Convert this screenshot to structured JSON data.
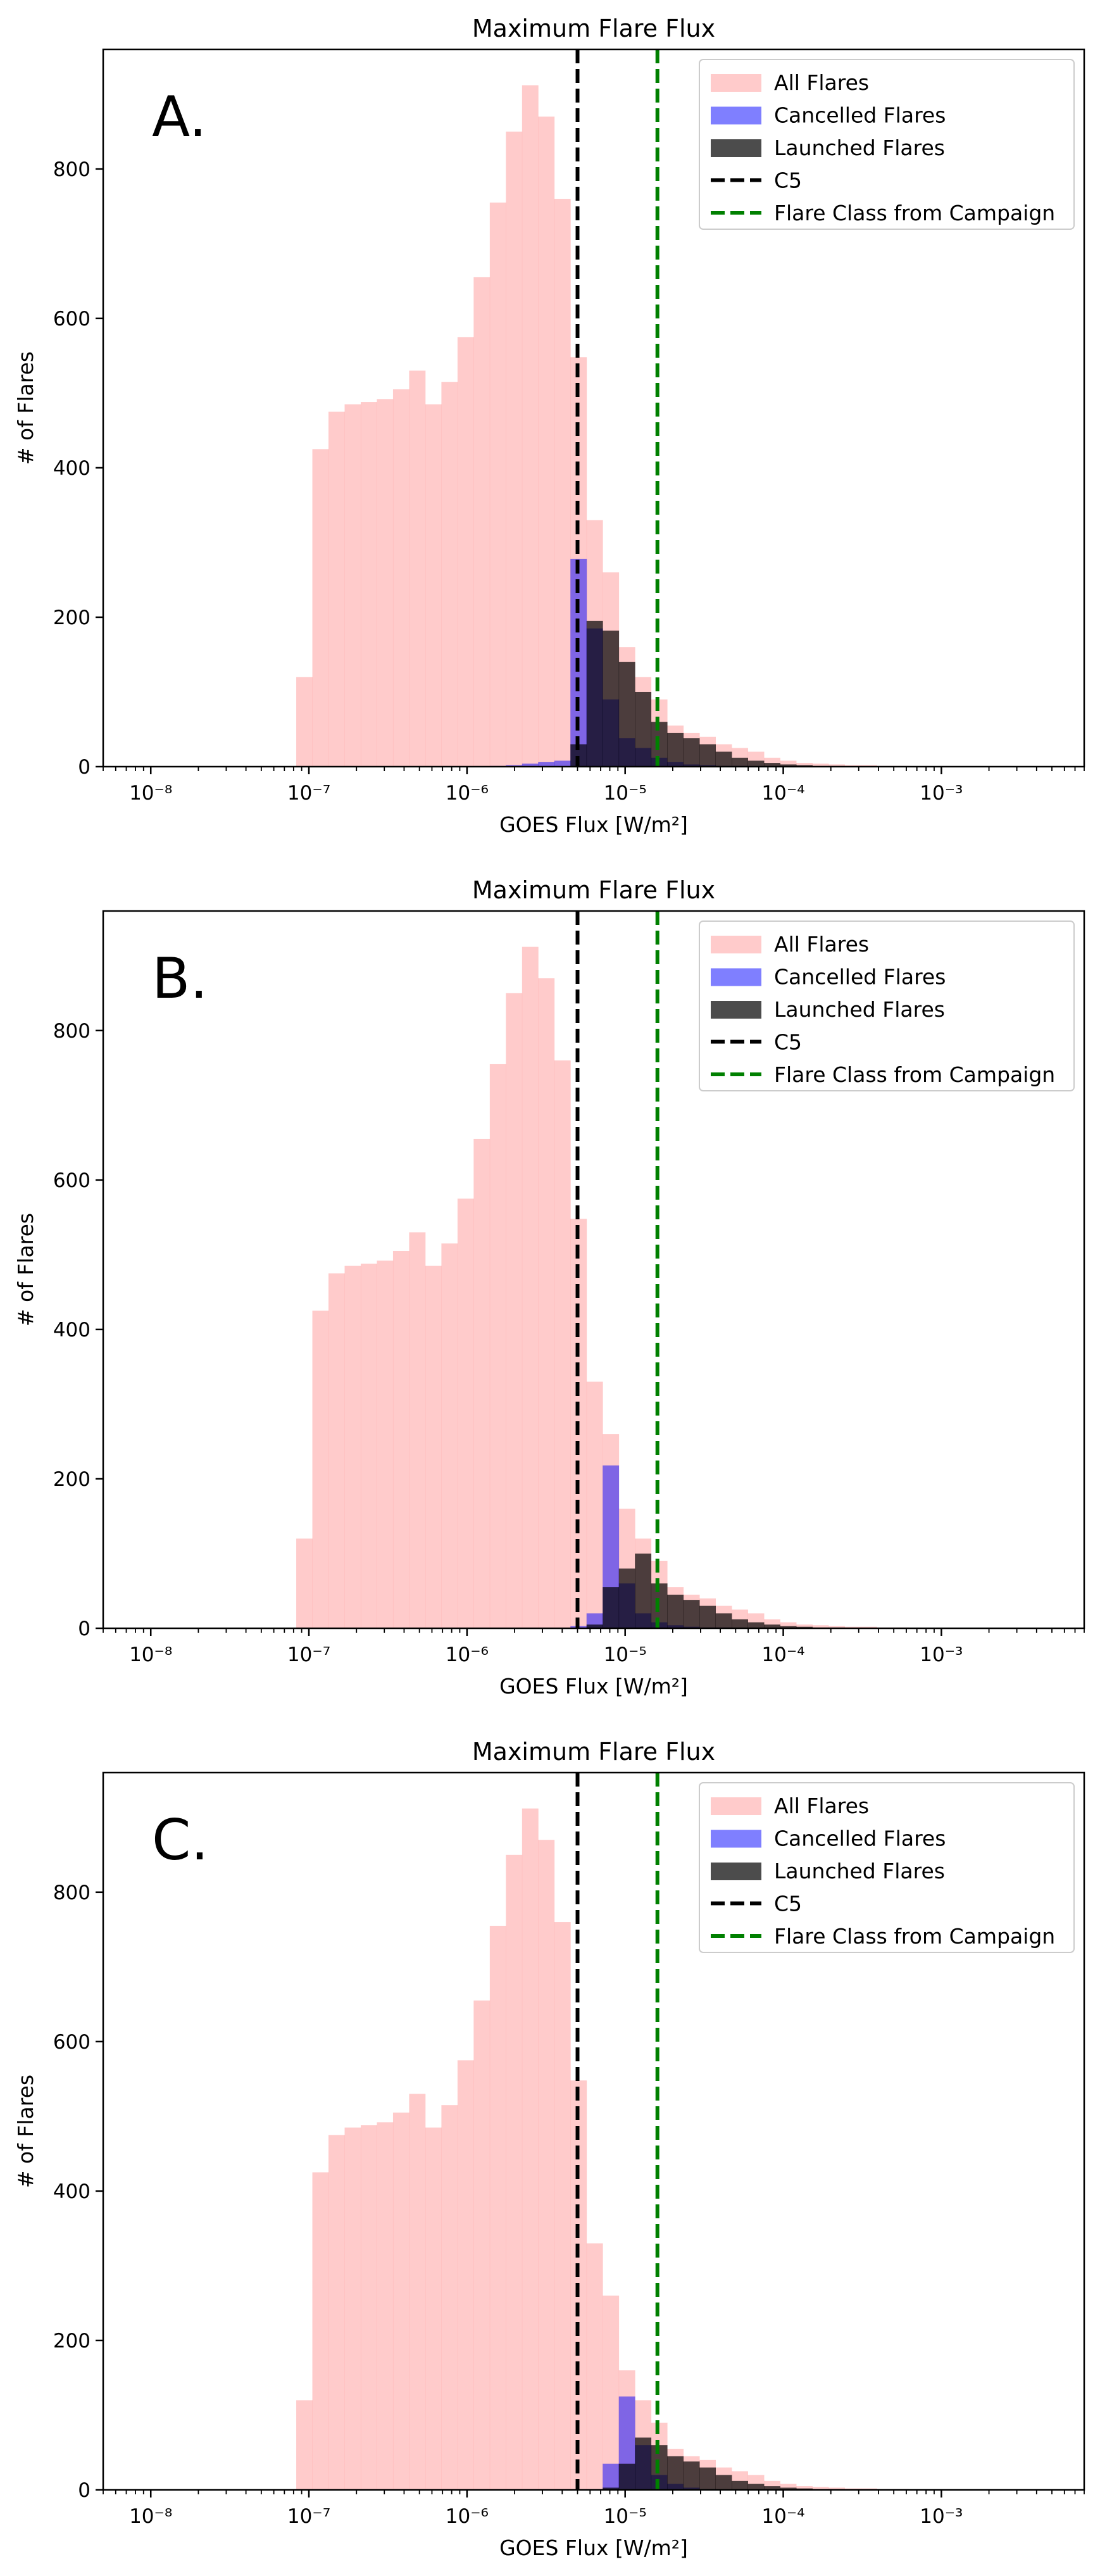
{
  "chart_data": [
    {
      "type": "bar",
      "panel_label": "A.",
      "title": "Maximum Flare Flux",
      "xlabel": "GOES Flux [W/m²]",
      "ylabel": "# of Flares",
      "xscale": "log",
      "xlim": [
        5e-09,
        0.008
      ],
      "ylim": [
        0,
        960
      ],
      "xticks": [
        {
          "value": 1e-08,
          "label": "10⁻⁸"
        },
        {
          "value": 1e-07,
          "label": "10⁻⁷"
        },
        {
          "value": 1e-06,
          "label": "10⁻⁶"
        },
        {
          "value": 1e-05,
          "label": "10⁻⁵"
        },
        {
          "value": 0.0001,
          "label": "10⁻⁴"
        },
        {
          "value": 0.001,
          "label": "10⁻³"
        }
      ],
      "yticks": [
        0,
        200,
        400,
        600,
        800
      ],
      "bin_log10_start": -7.08,
      "bin_log10_width": 0.102,
      "series": [
        {
          "name": "All Flares",
          "color": "#ffa0a0",
          "alpha": 0.55,
          "values": [
            120,
            425,
            475,
            485,
            488,
            492,
            505,
            530,
            485,
            515,
            575,
            655,
            755,
            850,
            912,
            870,
            760,
            548,
            330,
            260,
            160,
            120,
            90,
            55,
            45,
            40,
            30,
            25,
            20,
            12,
            8,
            5,
            4,
            3,
            2,
            2,
            1,
            1
          ]
        },
        {
          "name": "Cancelled Flares",
          "color": "#0000ff",
          "alpha": 0.5,
          "values": [
            0,
            0,
            0,
            0,
            0,
            0,
            0,
            0,
            0,
            0,
            0,
            0,
            1,
            2,
            4,
            6,
            8,
            278,
            185,
            90,
            38,
            25,
            12,
            6,
            3,
            2,
            1,
            1,
            0,
            0,
            0,
            0,
            0,
            0,
            0,
            0,
            0,
            0
          ]
        },
        {
          "name": "Launched Flares",
          "color": "#000000",
          "alpha": 0.7,
          "values": [
            0,
            0,
            0,
            0,
            0,
            0,
            0,
            0,
            0,
            0,
            0,
            0,
            0,
            0,
            0,
            0,
            0,
            30,
            195,
            182,
            140,
            100,
            60,
            45,
            38,
            30,
            20,
            12,
            8,
            5,
            3,
            2,
            1,
            1,
            0,
            0,
            0,
            0
          ]
        }
      ],
      "reference_lines": [
        {
          "name": "C5",
          "value": 5e-06,
          "color": "#000000",
          "style": "dashed"
        },
        {
          "name": "Flare Class from Campaign",
          "value": 1.6e-05,
          "color": "#008000",
          "style": "dashed"
        }
      ],
      "legend": {
        "placement": "top-right",
        "entries": [
          "All Flares",
          "Cancelled Flares",
          "Launched Flares",
          "C5",
          "Flare Class from Campaign"
        ]
      }
    },
    {
      "type": "bar",
      "panel_label": "B.",
      "title": "Maximum Flare Flux",
      "xlabel": "GOES Flux [W/m²]",
      "ylabel": "# of Flares",
      "xscale": "log",
      "xlim": [
        5e-09,
        0.008
      ],
      "ylim": [
        0,
        960
      ],
      "xticks": [
        {
          "value": 1e-08,
          "label": "10⁻⁸"
        },
        {
          "value": 1e-07,
          "label": "10⁻⁷"
        },
        {
          "value": 1e-06,
          "label": "10⁻⁶"
        },
        {
          "value": 1e-05,
          "label": "10⁻⁵"
        },
        {
          "value": 0.0001,
          "label": "10⁻⁴"
        },
        {
          "value": 0.001,
          "label": "10⁻³"
        }
      ],
      "yticks": [
        0,
        200,
        400,
        600,
        800
      ],
      "bin_log10_start": -7.08,
      "bin_log10_width": 0.102,
      "series": [
        {
          "name": "All Flares",
          "color": "#ffa0a0",
          "alpha": 0.55,
          "values": [
            120,
            425,
            475,
            485,
            488,
            492,
            505,
            530,
            485,
            515,
            575,
            655,
            755,
            850,
            912,
            870,
            760,
            548,
            330,
            260,
            160,
            120,
            90,
            55,
            45,
            40,
            30,
            25,
            20,
            12,
            8,
            5,
            4,
            3,
            2,
            2,
            1,
            1
          ]
        },
        {
          "name": "Cancelled Flares",
          "color": "#0000ff",
          "alpha": 0.5,
          "values": [
            0,
            0,
            0,
            0,
            0,
            0,
            0,
            0,
            0,
            0,
            0,
            0,
            0,
            0,
            0,
            0,
            0,
            3,
            20,
            218,
            60,
            20,
            8,
            4,
            2,
            1,
            1,
            0,
            0,
            0,
            0,
            0,
            0,
            0,
            0,
            0,
            0,
            0
          ]
        },
        {
          "name": "Launched Flares",
          "color": "#000000",
          "alpha": 0.7,
          "values": [
            0,
            0,
            0,
            0,
            0,
            0,
            0,
            0,
            0,
            0,
            0,
            0,
            0,
            0,
            0,
            0,
            0,
            0,
            5,
            55,
            80,
            100,
            60,
            45,
            38,
            30,
            20,
            12,
            8,
            5,
            3,
            2,
            1,
            1,
            0,
            0,
            0,
            0
          ]
        }
      ],
      "reference_lines": [
        {
          "name": "C5",
          "value": 5e-06,
          "color": "#000000",
          "style": "dashed"
        },
        {
          "name": "Flare Class from Campaign",
          "value": 1.6e-05,
          "color": "#008000",
          "style": "dashed"
        }
      ],
      "legend": {
        "placement": "top-right",
        "entries": [
          "All Flares",
          "Cancelled Flares",
          "Launched Flares",
          "C5",
          "Flare Class from Campaign"
        ]
      }
    },
    {
      "type": "bar",
      "panel_label": "C.",
      "title": "Maximum Flare Flux",
      "xlabel": "GOES Flux [W/m²]",
      "ylabel": "# of Flares",
      "xscale": "log",
      "xlim": [
        5e-09,
        0.008
      ],
      "ylim": [
        0,
        960
      ],
      "xticks": [
        {
          "value": 1e-08,
          "label": "10⁻⁸"
        },
        {
          "value": 1e-07,
          "label": "10⁻⁷"
        },
        {
          "value": 1e-06,
          "label": "10⁻⁶"
        },
        {
          "value": 1e-05,
          "label": "10⁻⁵"
        },
        {
          "value": 0.0001,
          "label": "10⁻⁴"
        },
        {
          "value": 0.001,
          "label": "10⁻³"
        }
      ],
      "yticks": [
        0,
        200,
        400,
        600,
        800
      ],
      "bin_log10_start": -7.08,
      "bin_log10_width": 0.102,
      "series": [
        {
          "name": "All Flares",
          "color": "#ffa0a0",
          "alpha": 0.55,
          "values": [
            120,
            425,
            475,
            485,
            488,
            492,
            505,
            530,
            485,
            515,
            575,
            655,
            755,
            850,
            912,
            870,
            760,
            548,
            330,
            260,
            160,
            120,
            90,
            55,
            45,
            40,
            30,
            25,
            20,
            12,
            8,
            5,
            4,
            3,
            2,
            2,
            1,
            1
          ]
        },
        {
          "name": "Cancelled Flares",
          "color": "#0000ff",
          "alpha": 0.5,
          "values": [
            0,
            0,
            0,
            0,
            0,
            0,
            0,
            0,
            0,
            0,
            0,
            0,
            0,
            0,
            0,
            0,
            0,
            0,
            0,
            35,
            125,
            60,
            20,
            8,
            3,
            1,
            0,
            0,
            0,
            0,
            0,
            0,
            0,
            0,
            0,
            0,
            0,
            0
          ]
        },
        {
          "name": "Launched Flares",
          "color": "#000000",
          "alpha": 0.7,
          "values": [
            0,
            0,
            0,
            0,
            0,
            0,
            0,
            0,
            0,
            0,
            0,
            0,
            0,
            0,
            0,
            0,
            0,
            0,
            0,
            3,
            35,
            70,
            60,
            45,
            38,
            30,
            20,
            12,
            8,
            5,
            3,
            2,
            1,
            1,
            0,
            0,
            0,
            0
          ]
        }
      ],
      "reference_lines": [
        {
          "name": "C5",
          "value": 5e-06,
          "color": "#000000",
          "style": "dashed"
        },
        {
          "name": "Flare Class from Campaign",
          "value": 1.6e-05,
          "color": "#008000",
          "style": "dashed"
        }
      ],
      "legend": {
        "placement": "top-right",
        "entries": [
          "All Flares",
          "Cancelled Flares",
          "Launched Flares",
          "C5",
          "Flare Class from Campaign"
        ]
      }
    }
  ]
}
